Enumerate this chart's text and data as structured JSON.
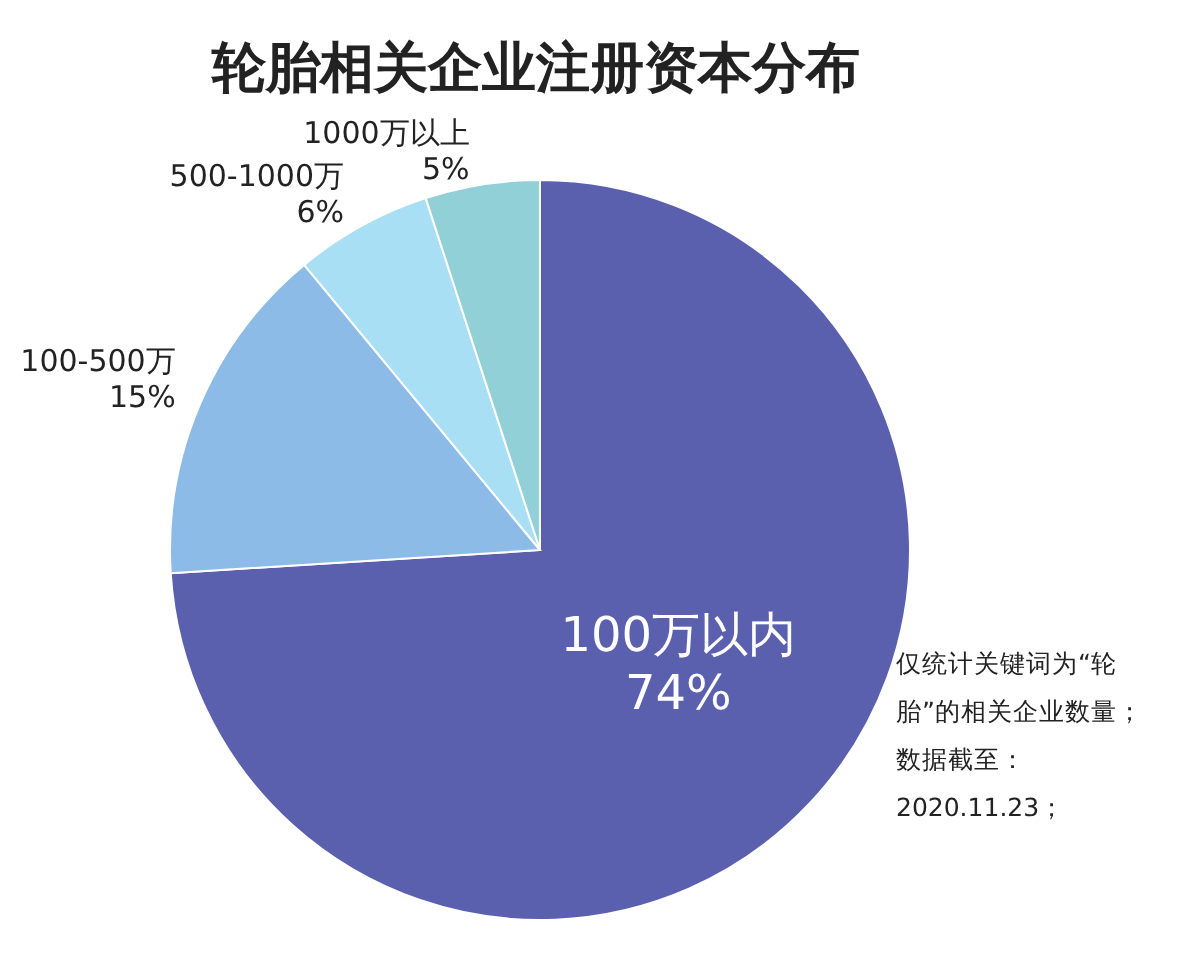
{
  "chart_data": {
    "type": "pie",
    "title": "轮胎相关企业注册资本分布",
    "categories": [
      "100万以内",
      "100-500万",
      "500-1000万",
      "1000万以上"
    ],
    "values": [
      74,
      15,
      6,
      5
    ],
    "colors": [
      "#5a60ae",
      "#8dbbe8",
      "#a9dff4",
      "#92d0d8"
    ],
    "value_labels": [
      "74%",
      "15%",
      "6%",
      "5%"
    ],
    "annotations": [
      "仅统计关键词为“轮胎”的相关企业数量；",
      "数据截至：2020.11.23；"
    ]
  }
}
